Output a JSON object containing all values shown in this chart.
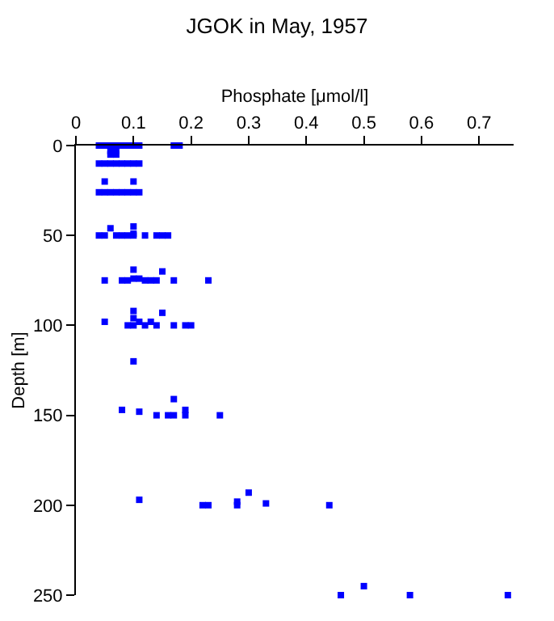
{
  "chart_data": {
    "type": "scatter",
    "title": "JGOK in May, 1957",
    "xlabel": "Phosphate [μmol/l]",
    "ylabel": "Depth [m]",
    "series": [
      {
        "color": "#0000ff",
        "x": [
          0.04,
          0.05,
          0.06,
          0.07,
          0.08,
          0.09,
          0.1,
          0.11,
          0.17,
          0.18,
          0.06,
          0.07,
          0.06,
          0.07,
          0.04,
          0.05,
          0.06,
          0.07,
          0.08,
          0.09,
          0.1,
          0.11,
          0.05,
          0.1,
          0.04,
          0.05,
          0.06,
          0.07,
          0.08,
          0.09,
          0.1,
          0.11,
          0.04,
          0.05,
          0.06,
          0.07,
          0.08,
          0.09,
          0.1,
          0.1,
          0.1,
          0.12,
          0.14,
          0.15,
          0.16,
          0.05,
          0.08,
          0.09,
          0.1,
          0.1,
          0.11,
          0.12,
          0.13,
          0.14,
          0.15,
          0.17,
          0.23,
          0.05,
          0.09,
          0.1,
          0.1,
          0.1,
          0.11,
          0.12,
          0.13,
          0.14,
          0.15,
          0.17,
          0.19,
          0.2,
          0.1,
          0.08,
          0.11,
          0.14,
          0.16,
          0.17,
          0.17,
          0.19,
          0.19,
          0.25,
          0.11,
          0.22,
          0.23,
          0.28,
          0.28,
          0.3,
          0.33,
          0.44,
          0.46,
          0.5,
          0.58,
          0.75
        ],
        "values": [
          0,
          0,
          0,
          0,
          0,
          0,
          0,
          0,
          0,
          0,
          3,
          3,
          5,
          5,
          10,
          10,
          10,
          10,
          10,
          10,
          10,
          10,
          20,
          20,
          26,
          26,
          26,
          26,
          26,
          26,
          26,
          26,
          50,
          50,
          46,
          50,
          50,
          50,
          50,
          49,
          45,
          50,
          50,
          50,
          50,
          75,
          75,
          75,
          69,
          74,
          74,
          75,
          75,
          75,
          70,
          75,
          75,
          98,
          100,
          92,
          96,
          100,
          98,
          100,
          98,
          100,
          93,
          100,
          100,
          100,
          120,
          147,
          148,
          150,
          150,
          150,
          141,
          150,
          147,
          150,
          197,
          200,
          200,
          198,
          200,
          193,
          199,
          200,
          250,
          245,
          250,
          250
        ]
      }
    ],
    "xlim": [
      0,
      0.76
    ],
    "xticks": [
      0,
      0.1,
      0.2,
      0.3,
      0.4,
      0.5,
      0.6,
      0.7
    ],
    "ylim": [
      250,
      0
    ],
    "yticks": [
      0,
      50,
      100,
      150,
      200,
      250
    ],
    "marker": "square"
  }
}
